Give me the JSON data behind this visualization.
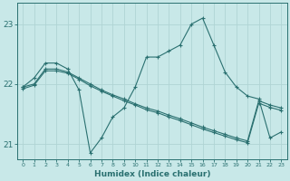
{
  "xlabel": "Humidex (Indice chaleur)",
  "background_color": "#c8e8e8",
  "grid_color": "#b0d4d4",
  "line_color": "#2a7070",
  "xlim": [
    -0.5,
    23.5
  ],
  "ylim": [
    20.75,
    23.35
  ],
  "yticks": [
    21,
    22,
    23
  ],
  "xticks": [
    0,
    1,
    2,
    3,
    4,
    5,
    6,
    7,
    8,
    9,
    10,
    11,
    12,
    13,
    14,
    15,
    16,
    17,
    18,
    19,
    20,
    21,
    22,
    23
  ],
  "series": [
    {
      "x": [
        0,
        1,
        2,
        3,
        4,
        5,
        6,
        7,
        8,
        9,
        10,
        11,
        12,
        13,
        14,
        15,
        16,
        17,
        18,
        19,
        20,
        21,
        22,
        23
      ],
      "y": [
        21.95,
        22.1,
        22.35,
        22.35,
        22.25,
        21.9,
        20.85,
        21.1,
        21.45,
        21.6,
        21.95,
        22.45,
        22.45,
        22.55,
        22.65,
        23.0,
        23.1,
        22.65,
        22.2,
        21.95,
        21.8,
        21.75,
        21.1,
        21.2
      ]
    },
    {
      "x": [
        0,
        1,
        2,
        3,
        4,
        5,
        6,
        7,
        8,
        9,
        10,
        11,
        12,
        13,
        14,
        15,
        16,
        17,
        18,
        19,
        20,
        21,
        22,
        23
      ],
      "y": [
        21.95,
        22.0,
        22.25,
        22.25,
        22.2,
        22.1,
        22.0,
        21.9,
        21.82,
        21.75,
        21.67,
        21.6,
        21.55,
        21.48,
        21.42,
        21.35,
        21.28,
        21.22,
        21.16,
        21.1,
        21.05,
        21.72,
        21.65,
        21.6
      ]
    },
    {
      "x": [
        0,
        1,
        2,
        3,
        4,
        5,
        6,
        7,
        8,
        9,
        10,
        11,
        12,
        13,
        14,
        15,
        16,
        17,
        18,
        19,
        20,
        21,
        22,
        23
      ],
      "y": [
        21.92,
        21.98,
        22.22,
        22.22,
        22.18,
        22.08,
        21.97,
        21.88,
        21.8,
        21.72,
        21.65,
        21.57,
        21.52,
        21.45,
        21.39,
        21.32,
        21.25,
        21.19,
        21.13,
        21.07,
        21.02,
        21.68,
        21.61,
        21.56
      ]
    }
  ]
}
